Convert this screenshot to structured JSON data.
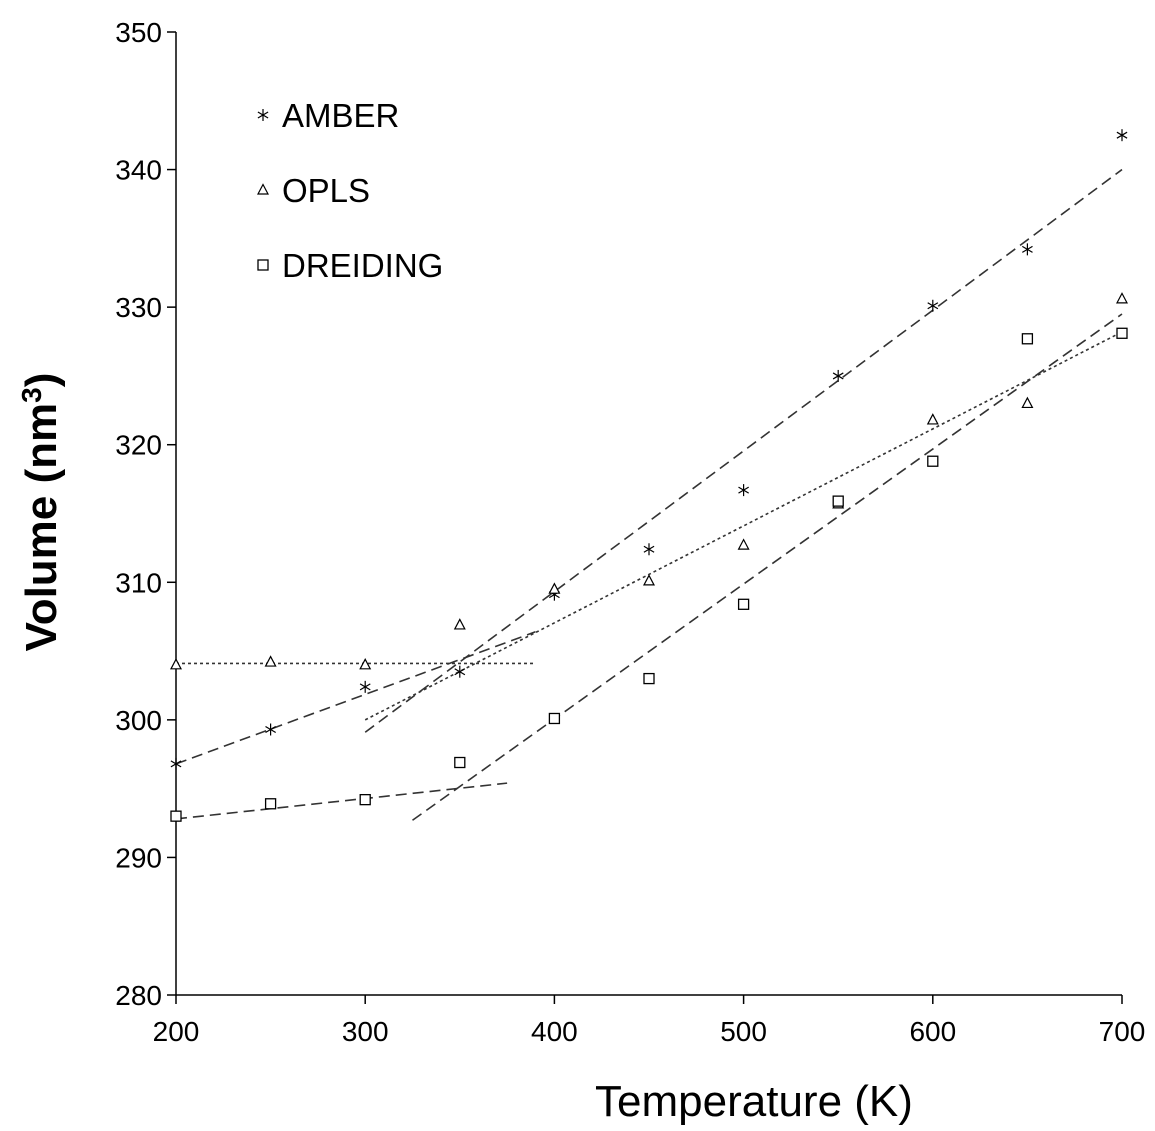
{
  "chart_data": {
    "type": "scatter",
    "xlabel": "Temperature  (K)",
    "ylabel": {
      "base": "Volume (nm",
      "sup": "3",
      "close": ")"
    },
    "xlim": [
      200,
      700
    ],
    "ylim": [
      280,
      350
    ],
    "xticks": [
      "200",
      "300",
      "400",
      "500",
      "600",
      "700"
    ],
    "yticks": [
      "280",
      "290",
      "300",
      "310",
      "320",
      "330",
      "340",
      "350"
    ],
    "grid": false,
    "legend_position": "top-left",
    "series": [
      {
        "name": "AMBER",
        "marker": "asterisk",
        "x": [
          200,
          250,
          300,
          350,
          400,
          450,
          500,
          550,
          600,
          650,
          700
        ],
        "y": [
          296.8,
          299.3,
          302.4,
          303.5,
          309.1,
          312.4,
          316.7,
          325.0,
          330.1,
          334.2,
          342.5
        ]
      },
      {
        "name": "OPLS",
        "marker": "triangle",
        "x": [
          200,
          250,
          300,
          350,
          400,
          450,
          500,
          550,
          600,
          650,
          700
        ],
        "y": [
          304.0,
          304.2,
          304.0,
          306.9,
          309.5,
          310.1,
          312.7,
          315.7,
          321.8,
          323.0,
          330.6
        ]
      },
      {
        "name": "DREIDING",
        "marker": "square",
        "x": [
          200,
          250,
          300,
          350,
          400,
          450,
          500,
          550,
          600,
          650,
          700
        ],
        "y": [
          293.0,
          293.9,
          294.2,
          296.9,
          300.1,
          303.0,
          308.4,
          315.9,
          318.8,
          327.7,
          328.1
        ]
      }
    ],
    "fit_lines": [
      {
        "series": "AMBER",
        "style": "dashed",
        "x": [
          200,
          390
        ],
        "y": [
          296.8,
          306.4
        ]
      },
      {
        "series": "AMBER",
        "style": "dashed",
        "x": [
          300,
          700
        ],
        "y": [
          299.1,
          340.0
        ]
      },
      {
        "series": "OPLS",
        "style": "dotted",
        "x": [
          200,
          390
        ],
        "y": [
          304.1,
          304.1
        ]
      },
      {
        "series": "OPLS",
        "style": "dotted",
        "x": [
          300,
          700
        ],
        "y": [
          300.0,
          328.2
        ]
      },
      {
        "series": "DREIDING",
        "style": "dashed",
        "x": [
          200,
          375
        ],
        "y": [
          292.8,
          295.4
        ]
      },
      {
        "series": "DREIDING",
        "style": "dashed",
        "x": [
          325,
          700
        ],
        "y": [
          292.7,
          329.5
        ]
      }
    ],
    "colors": {
      "axis": "#000000",
      "line": "#333333",
      "marker": "#000000"
    }
  }
}
